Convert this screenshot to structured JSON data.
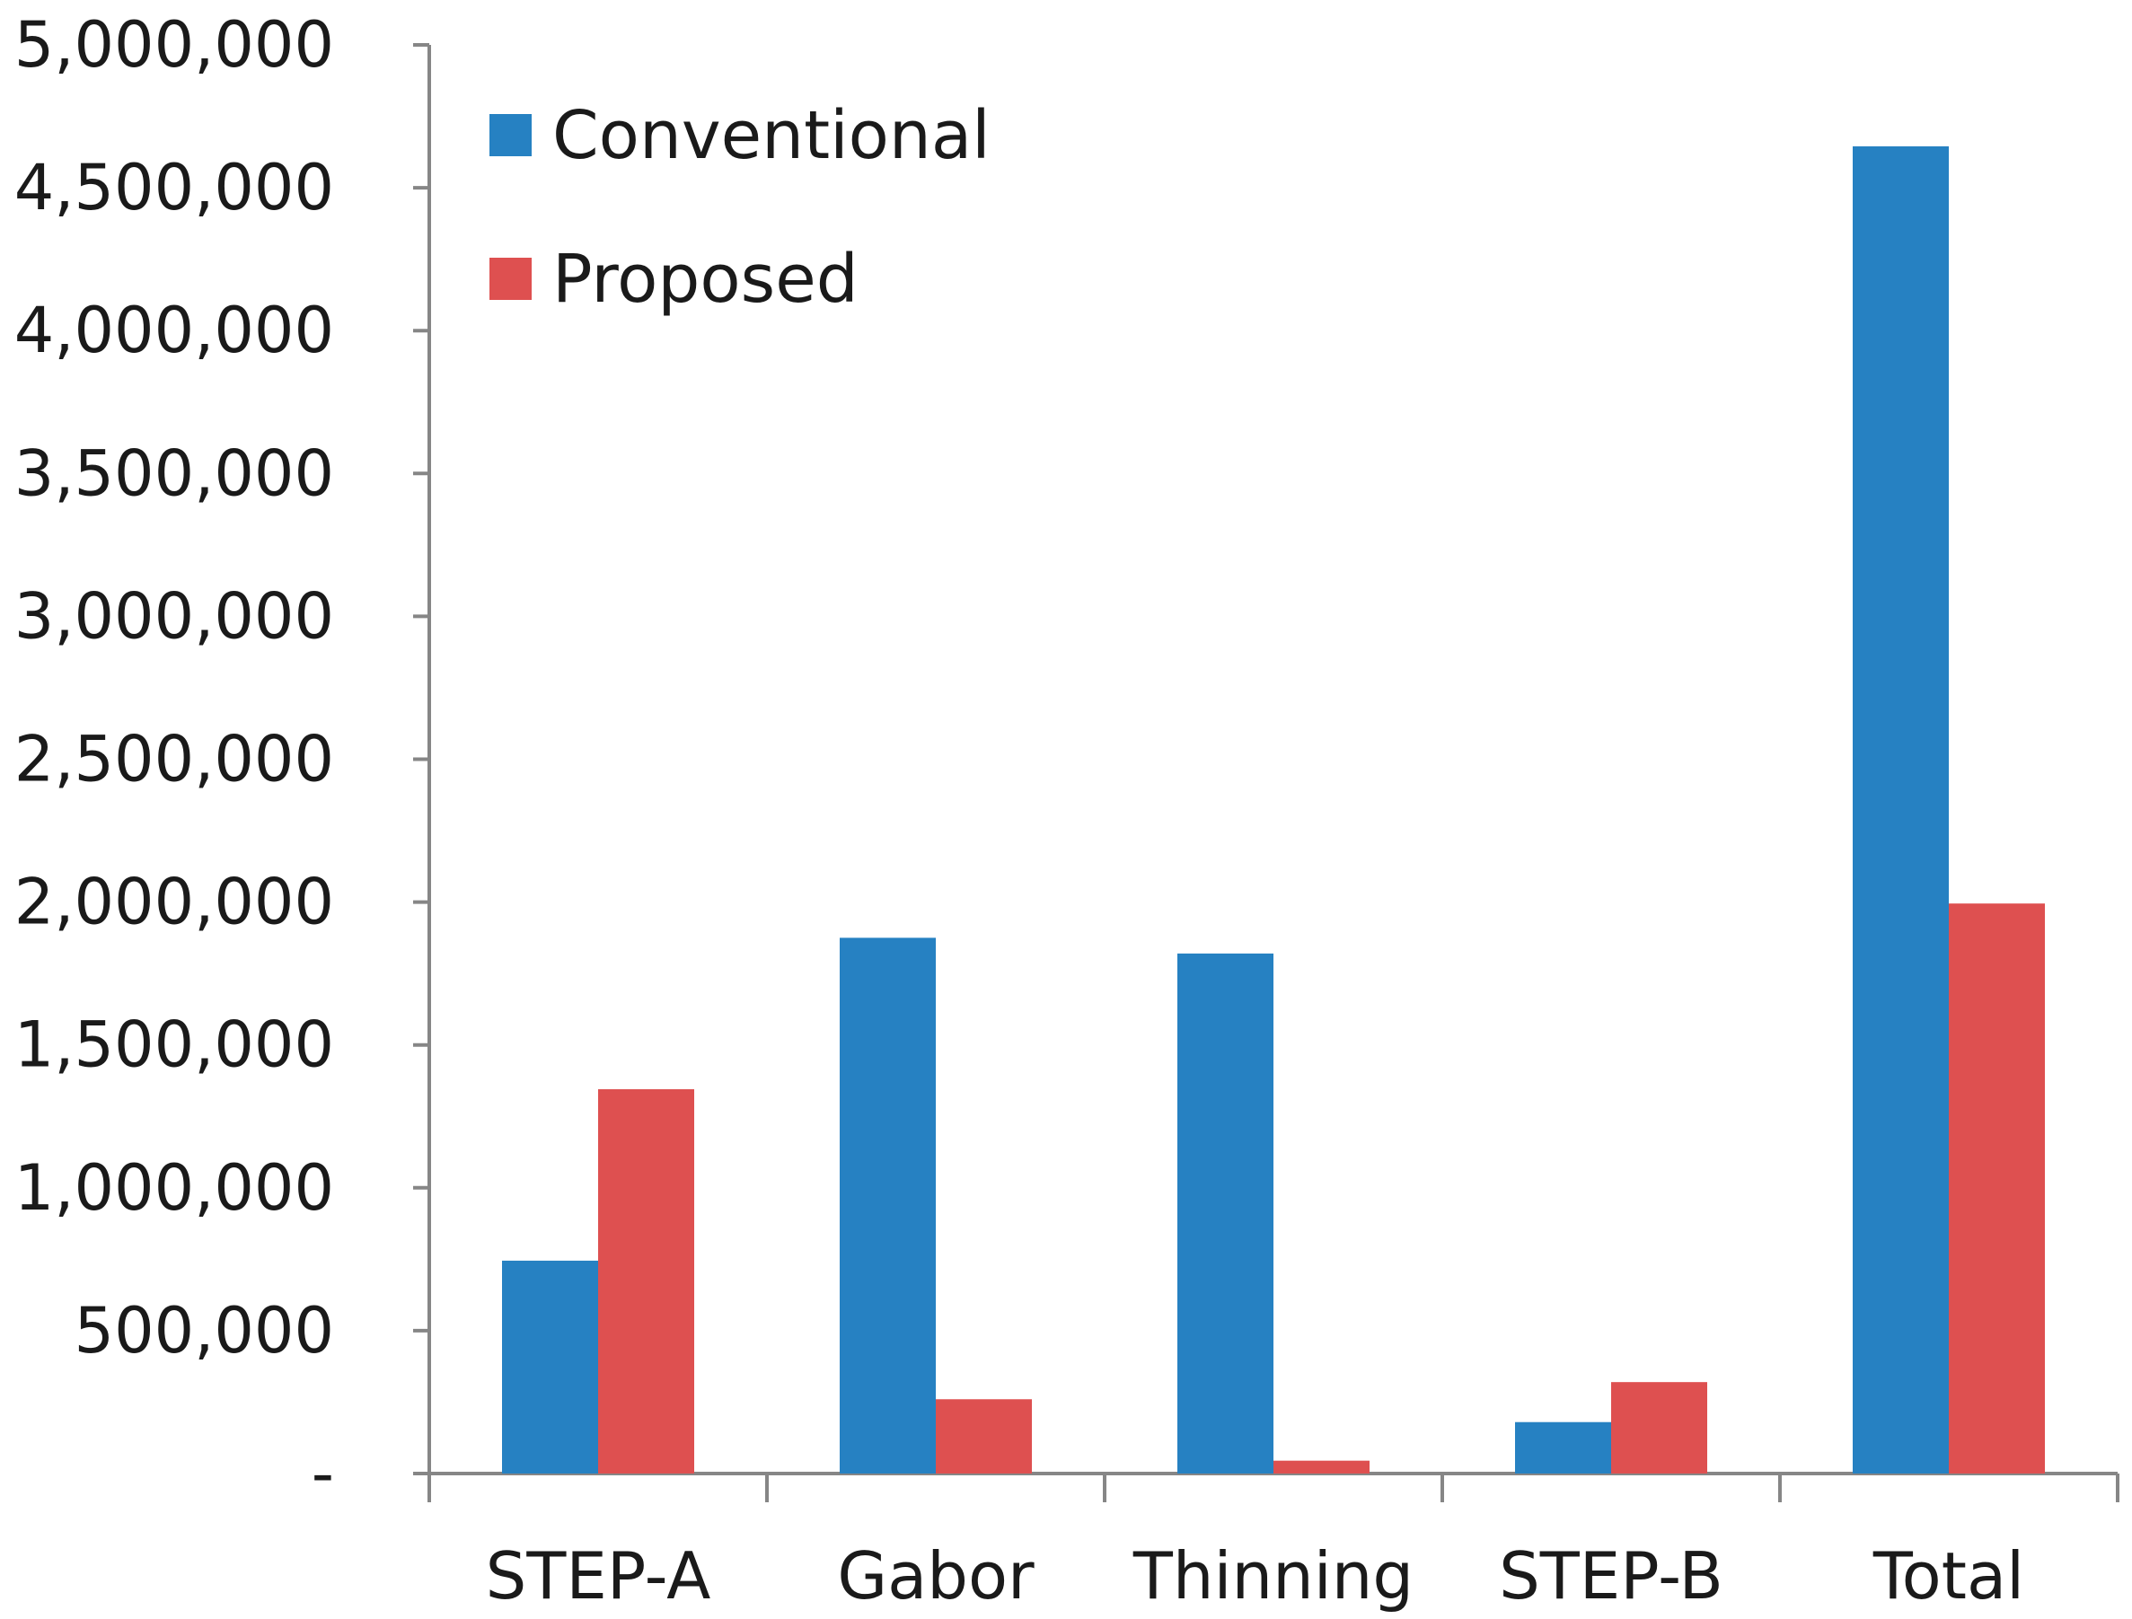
{
  "chart_data": {
    "type": "bar",
    "title": "",
    "xlabel": "",
    "ylabel": "",
    "categories": [
      "STEP-A",
      "Gabor",
      "Thinning",
      "STEP-B",
      "Total"
    ],
    "series": [
      {
        "name": "Conventional",
        "color": "#2681C2",
        "values": [
          745000,
          1875000,
          1820000,
          180000,
          4645000
        ]
      },
      {
        "name": "Proposed",
        "color": "#DE5050",
        "values": [
          1345000,
          260000,
          45000,
          320000,
          1995000
        ]
      }
    ],
    "ylim": [
      0,
      5000000
    ],
    "yticks": [
      0,
      500000,
      1000000,
      1500000,
      2000000,
      2500000,
      3000000,
      3500000,
      4000000,
      4500000,
      5000000
    ],
    "ytick_labels": [
      "-",
      "500,000",
      "1,000,000",
      "1,500,000",
      "2,000,000",
      "2,500,000",
      "3,000,000",
      "3,500,000",
      "4,000,000",
      "4,500,000",
      "5,000,000"
    ],
    "grid": false,
    "legend_position": "top-left"
  }
}
